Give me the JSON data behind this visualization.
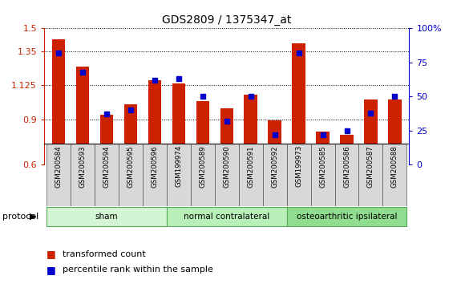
{
  "title": "GDS2809 / 1375347_at",
  "samples": [
    "GSM200584",
    "GSM200593",
    "GSM200594",
    "GSM200595",
    "GSM200596",
    "GSM199974",
    "GSM200589",
    "GSM200590",
    "GSM200591",
    "GSM200592",
    "GSM199973",
    "GSM200585",
    "GSM200586",
    "GSM200587",
    "GSM200588"
  ],
  "bar_values": [
    1.43,
    1.25,
    0.93,
    1.0,
    1.16,
    1.135,
    1.02,
    0.97,
    1.06,
    0.895,
    1.4,
    0.82,
    0.8,
    1.03,
    1.03
  ],
  "dot_values": [
    82,
    68,
    37,
    40,
    62,
    63,
    50,
    32,
    50,
    22,
    82,
    22,
    25,
    38,
    50
  ],
  "ylim_left": [
    0.6,
    1.5
  ],
  "ylim_right": [
    0,
    100
  ],
  "yticks_left": [
    0.6,
    0.9,
    1.125,
    1.35,
    1.5
  ],
  "ytick_labels_left": [
    "0.6",
    "0.9",
    "1.125",
    "1.35",
    "1.5"
  ],
  "yticks_right": [
    0,
    25,
    50,
    75,
    100
  ],
  "ytick_labels_right": [
    "0",
    "25",
    "50",
    "75",
    "100%"
  ],
  "groups": [
    {
      "label": "sham",
      "start": 0,
      "end": 5,
      "color": "#d4f5d4"
    },
    {
      "label": "normal contralateral",
      "start": 5,
      "end": 10,
      "color": "#b8eeb8"
    },
    {
      "label": "osteoarthritic ipsilateral",
      "start": 10,
      "end": 15,
      "color": "#90dd90"
    }
  ],
  "bar_color": "#cc2200",
  "dot_color": "#0000cc",
  "tick_bg": "#d8d8d8",
  "protocol_label": "protocol",
  "legend_items": [
    {
      "label": "transformed count",
      "color": "#cc2200"
    },
    {
      "label": "percentile rank within the sample",
      "color": "#0000cc"
    }
  ]
}
